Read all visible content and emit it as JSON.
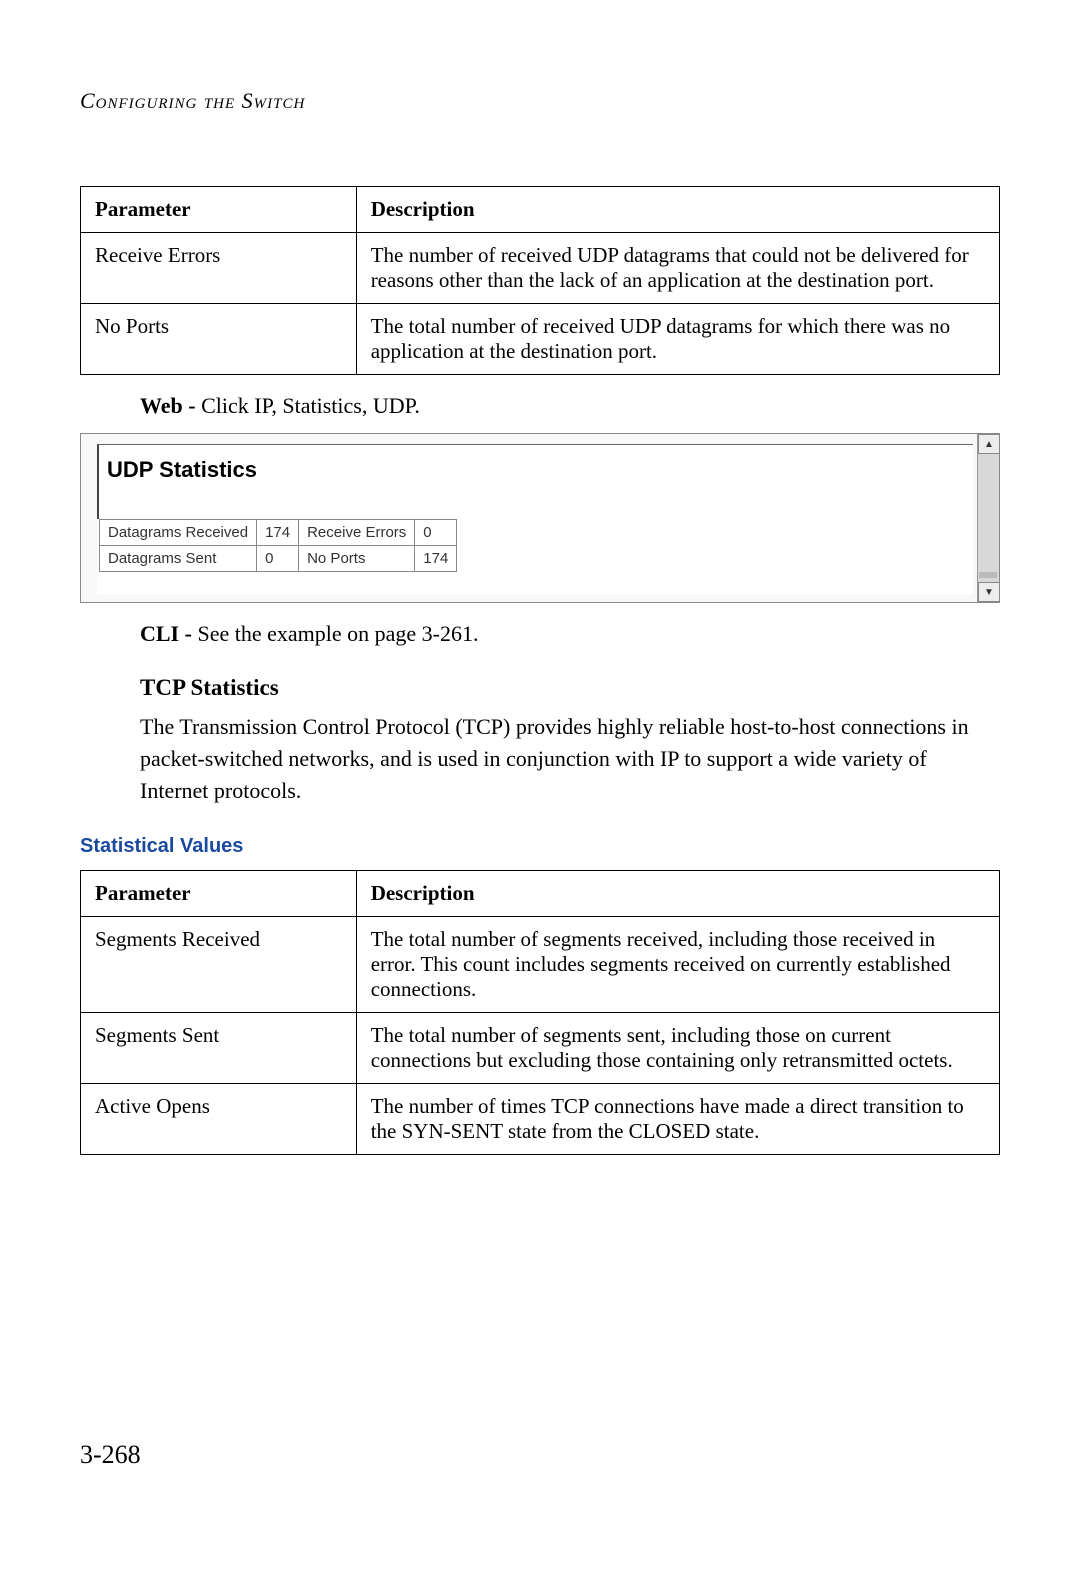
{
  "header": {
    "title": "Configuring the Switch"
  },
  "table1": {
    "headers": [
      "Parameter",
      "Description"
    ],
    "rows": [
      {
        "param": "Receive Errors",
        "desc": "The number of received UDP datagrams that could not be delivered for reasons other than the lack of an application at the destination port."
      },
      {
        "param": "No Ports",
        "desc": "The total number of received UDP datagrams for which there was no application at the destination port."
      }
    ]
  },
  "web_line": {
    "prefix": "Web - ",
    "text": "Click IP, Statistics, UDP."
  },
  "udp_screenshot": {
    "title": "UDP Statistics",
    "cells": {
      "r1c1": "Datagrams Received",
      "r1c2": "174",
      "r1c3": "Receive Errors",
      "r1c4": "0",
      "r2c1": "Datagrams Sent",
      "r2c2": "0",
      "r2c3": "No Ports",
      "r2c4": "174"
    },
    "scroll_up_glyph": "▲",
    "scroll_down_glyph": "▼"
  },
  "cli_line": {
    "prefix": "CLI - ",
    "text": "See the example on page 3-261."
  },
  "tcp": {
    "heading": "TCP Statistics",
    "paragraph": "The Transmission Control Protocol (TCP) provides highly reliable host-to-host connections in packet-switched networks, and is used in conjunction with IP to support a wide variety of Internet protocols."
  },
  "stat_values_heading": "Statistical Values",
  "table2": {
    "headers": [
      "Parameter",
      "Description"
    ],
    "rows": [
      {
        "param": "Segments Received",
        "desc": "The total number of segments received, including those received in error. This count includes segments received on currently established connections."
      },
      {
        "param": "Segments Sent",
        "desc": "The total number of segments sent, including those on current connections but excluding those containing only retransmitted octets."
      },
      {
        "param": "Active Opens",
        "desc": "The number of times TCP connections have made a direct transition to the SYN-SENT state from the CLOSED state."
      }
    ]
  },
  "page_number": "3-268",
  "colors": {
    "stat_heading": "#1a4aa0",
    "border": "#000000",
    "scrollbar_bg": "#d8d8d8"
  }
}
